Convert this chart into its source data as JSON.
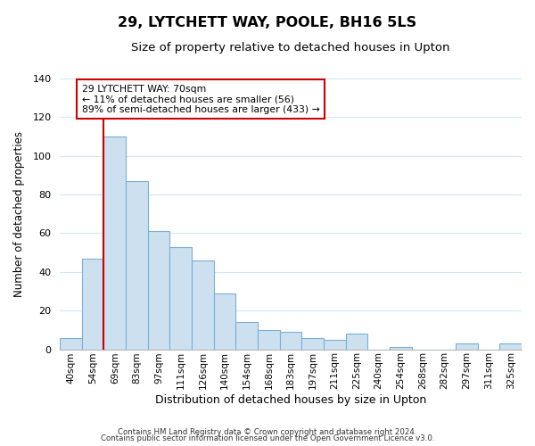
{
  "title": "29, LYTCHETT WAY, POOLE, BH16 5LS",
  "subtitle": "Size of property relative to detached houses in Upton",
  "xlabel": "Distribution of detached houses by size in Upton",
  "ylabel": "Number of detached properties",
  "bar_labels": [
    "40sqm",
    "54sqm",
    "69sqm",
    "83sqm",
    "97sqm",
    "111sqm",
    "126sqm",
    "140sqm",
    "154sqm",
    "168sqm",
    "183sqm",
    "197sqm",
    "211sqm",
    "225sqm",
    "240sqm",
    "254sqm",
    "268sqm",
    "282sqm",
    "297sqm",
    "311sqm",
    "325sqm"
  ],
  "bar_values": [
    6,
    47,
    110,
    87,
    61,
    53,
    46,
    29,
    14,
    10,
    9,
    6,
    5,
    8,
    0,
    1,
    0,
    0,
    3,
    0,
    3
  ],
  "bar_color": "#cce0f0",
  "bar_edge_color": "#7ab0d4",
  "highlight_line_color": "#cc0000",
  "highlight_line_index": 2,
  "annotation_title": "29 LYTCHETT WAY: 70sqm",
  "annotation_line1": "← 11% of detached houses are smaller (56)",
  "annotation_line2": "89% of semi-detached houses are larger (433) →",
  "annotation_box_color": "#ffffff",
  "annotation_box_edge": "#cc0000",
  "ylim": [
    0,
    140
  ],
  "yticks": [
    0,
    20,
    40,
    60,
    80,
    100,
    120,
    140
  ],
  "footer1": "Contains HM Land Registry data © Crown copyright and database right 2024.",
  "footer2": "Contains public sector information licensed under the Open Government Licence v3.0.",
  "background_color": "#ffffff",
  "grid_color": "#d0e8f8"
}
